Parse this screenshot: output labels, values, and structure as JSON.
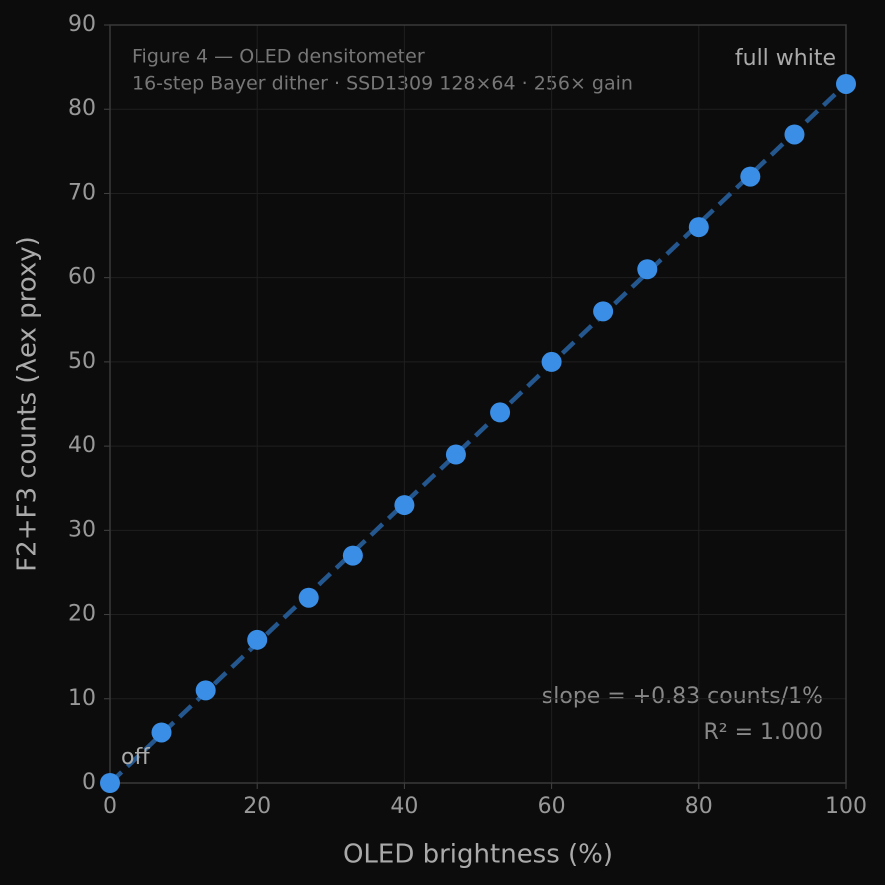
{
  "chart_data": {
    "type": "scatter",
    "title": "Figure 4 — OLED densitometer",
    "subtitle": "16-step Bayer dither · SSD1309 128×64 · 256× gain",
    "x_label": "OLED brightness (%)",
    "y_label": "F2+F3 counts (λex proxy)",
    "series": [
      {
        "name": "readings",
        "color": "#3a8ee6",
        "x": [
          0,
          7,
          13,
          20,
          27,
          33,
          40,
          47,
          53,
          60,
          67,
          73,
          80,
          87,
          93,
          100
        ],
        "values": [
          0,
          6,
          11,
          17,
          22,
          27,
          33,
          39,
          44,
          50,
          56,
          61,
          66,
          72,
          77,
          83
        ]
      }
    ],
    "fit": {
      "color": "#25578f",
      "x": [
        0,
        100
      ],
      "values": [
        0,
        83
      ]
    },
    "annotations": {
      "start": "off",
      "end": "full white",
      "slope": "slope = +0.83 counts/1%",
      "r2": "R² = 1.000"
    },
    "xlim": [
      0,
      100
    ],
    "ylim": [
      0,
      90
    ],
    "xticks": [
      0,
      20,
      40,
      60,
      80,
      100
    ],
    "yticks": [
      0,
      10,
      20,
      30,
      40,
      50,
      60,
      70,
      80,
      90
    ],
    "grid": true
  }
}
